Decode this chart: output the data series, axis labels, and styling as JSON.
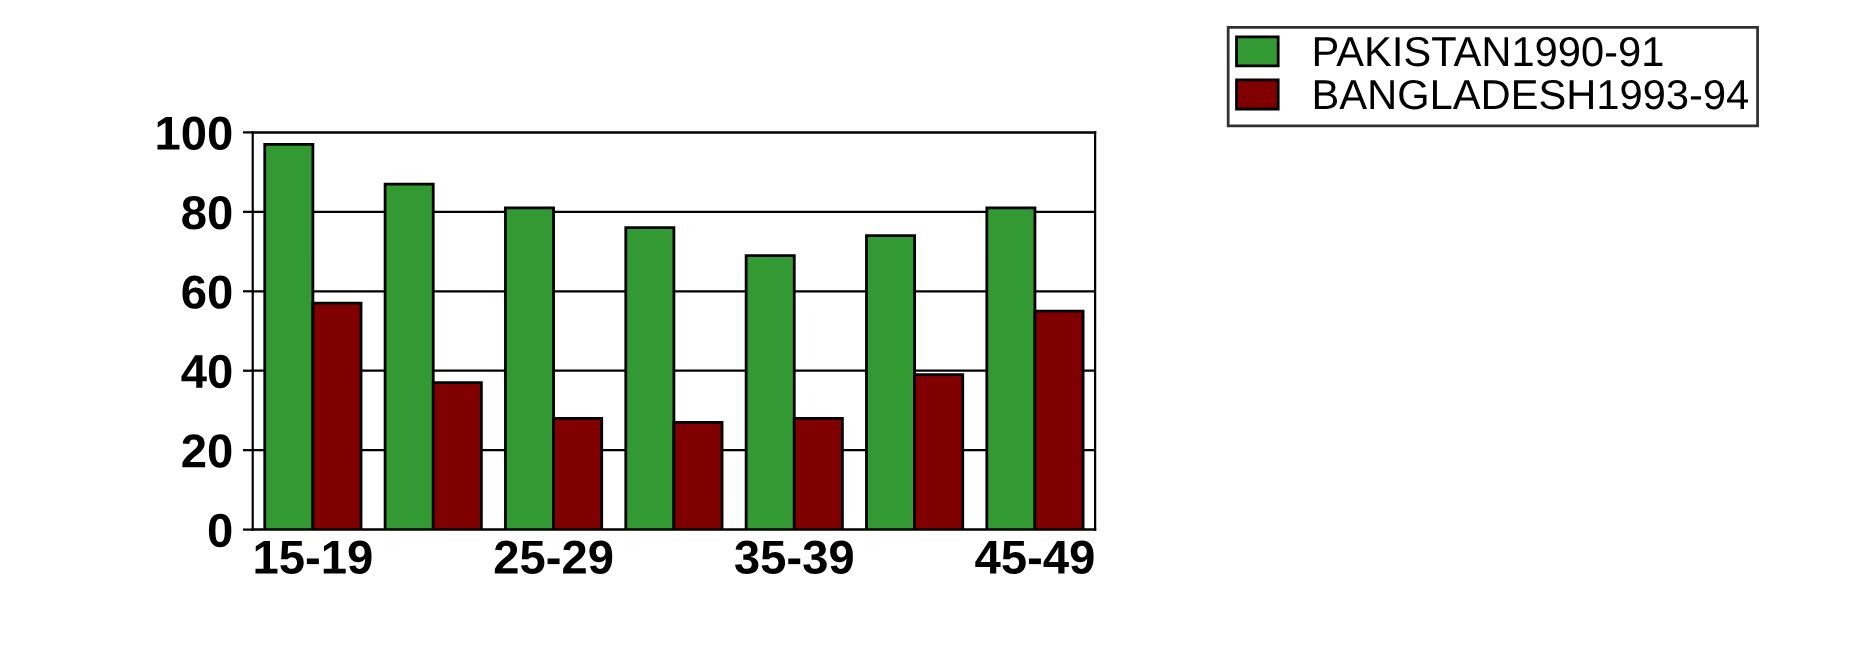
{
  "chart_data": {
    "type": "bar",
    "categories": [
      "15-19",
      null,
      "25-29",
      null,
      "35-39",
      null,
      "45-49"
    ],
    "series": [
      {
        "name": "PAKISTAN1990-91",
        "color": "#339933",
        "values": [
          97,
          87,
          81,
          76,
          69,
          74,
          81
        ]
      },
      {
        "name": "BANGLADESH1993-94",
        "color": "#800000",
        "values": [
          57,
          37,
          28,
          27,
          28,
          39,
          55
        ]
      }
    ],
    "ylim": [
      0,
      100
    ],
    "yticks": [
      0,
      20,
      40,
      60,
      80,
      100
    ],
    "grid": "y",
    "legend": "top right"
  }
}
